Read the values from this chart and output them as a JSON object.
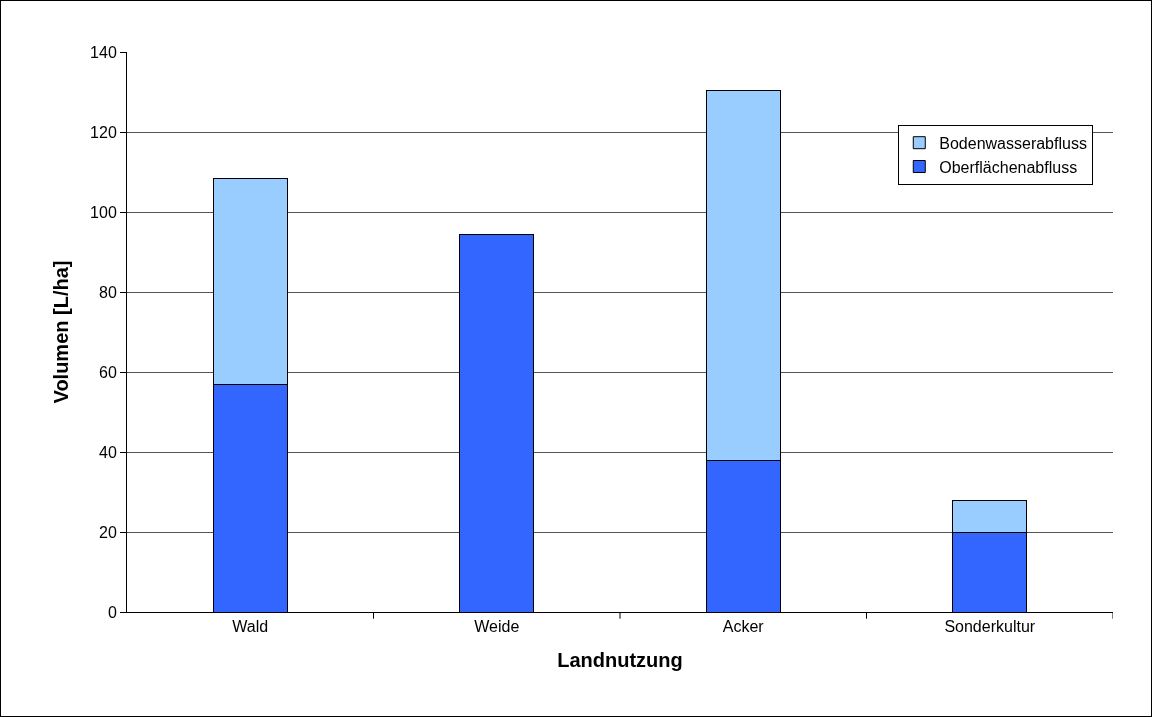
{
  "chart_data": {
    "type": "bar",
    "xlabel": "Landnutzung",
    "ylabel": "Volumen [L/ha]",
    "categories": [
      "Wald",
      "Weide",
      "Acker",
      "Sonderkultur"
    ],
    "stacked": true,
    "series": [
      {
        "name": "Oberflächenabfluss",
        "color": "#3366ff",
        "values": [
          57,
          94.5,
          38,
          20
        ]
      },
      {
        "name": "Bodenwasserabfluss",
        "color": "#99ccff",
        "values": [
          51.5,
          null,
          92.5,
          8
        ]
      }
    ],
    "ylim": [
      0,
      140
    ],
    "yticks": [
      0,
      20,
      40,
      60,
      80,
      100,
      120,
      140
    ],
    "grid": "y",
    "legend": "top right"
  }
}
